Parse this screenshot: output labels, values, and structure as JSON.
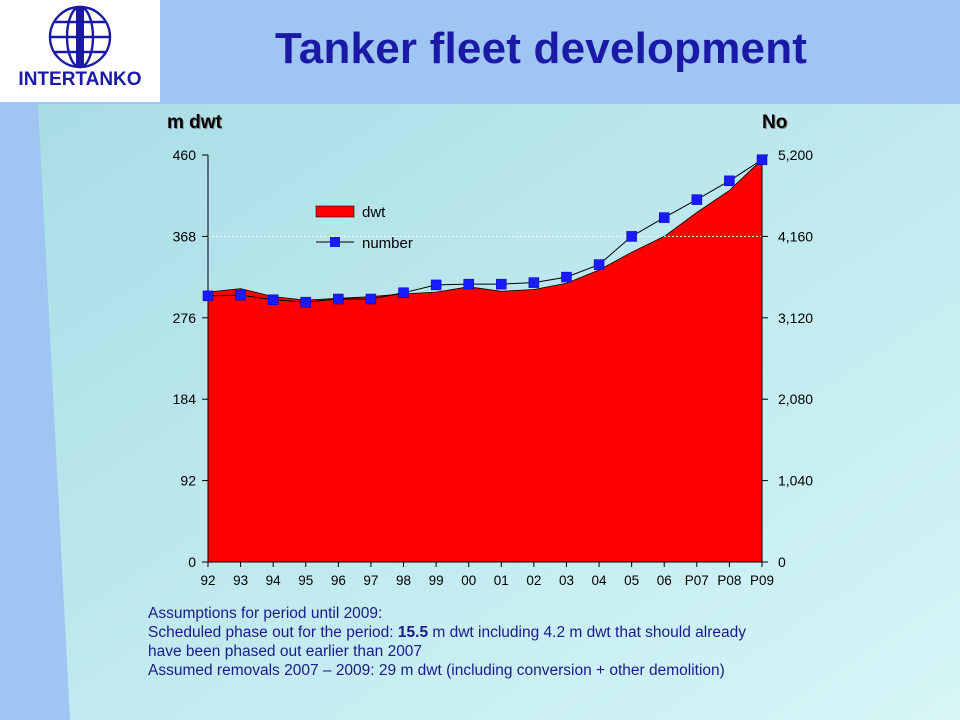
{
  "header": {
    "title": "Tanker fleet development",
    "logo_text": "INTERTANKO"
  },
  "colors": {
    "title": "#1a1aa6",
    "band": "#9fc6f2",
    "panel": "#bdeaf0",
    "dwt_fill": "#ff0000",
    "number_marker": "#1a1aff",
    "notes": "#1a1a8c"
  },
  "chart_data": {
    "type": "area",
    "left_axis_title": "m dwt",
    "right_axis_title": "No",
    "categories": [
      "92",
      "93",
      "94",
      "95",
      "96",
      "97",
      "98",
      "99",
      "00",
      "01",
      "02",
      "03",
      "04",
      "05",
      "06",
      "P07",
      "P08",
      "P09"
    ],
    "y_left": {
      "min": 0,
      "max": 460,
      "ticks": [
        "0",
        "92",
        "184",
        "276",
        "368",
        "460"
      ]
    },
    "y_right": {
      "min": 0,
      "max": 5200,
      "ticks": [
        "0",
        "1,040",
        "2,080",
        "3,120",
        "4,160",
        "5,200"
      ]
    },
    "grid": "dotted line at 368",
    "legend": {
      "position": "top-left"
    },
    "series": [
      {
        "name": "dwt",
        "type": "area",
        "axis": "left",
        "values": [
          305,
          309,
          300,
          296,
          298,
          300,
          303,
          305,
          311,
          306,
          308,
          315,
          330,
          350,
          368,
          395,
          420,
          455
        ]
      },
      {
        "name": "number",
        "type": "line",
        "axis": "right",
        "values": [
          3400,
          3410,
          3350,
          3320,
          3360,
          3360,
          3440,
          3540,
          3550,
          3550,
          3570,
          3640,
          3800,
          4160,
          4400,
          4630,
          4870,
          5140
        ]
      }
    ]
  },
  "notes": {
    "line1": "Assumptions for period until 2009:",
    "line2_pre": "Scheduled phase out for the period: ",
    "line2_hl": "15.5",
    "line2_post": " m dwt including 4.2 m dwt that should already",
    "line3": "have been phased out earlier than 2007",
    "line4": "Assumed removals 2007 – 2009: 29 m dwt (including conversion + other demolition)"
  }
}
